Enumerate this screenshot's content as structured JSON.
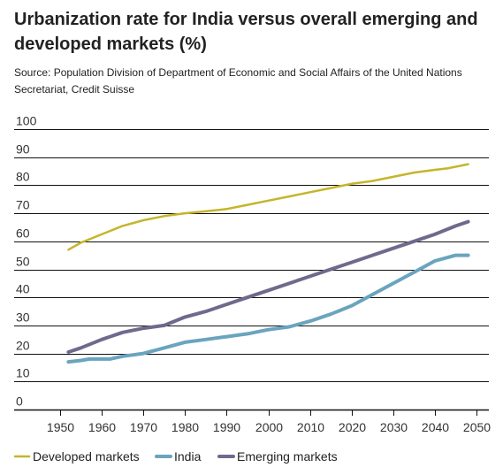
{
  "title": "Urbanization rate for India versus overall emerging and developed markets (%)",
  "source": "Source: Population Division of Department of Economic and Social Affairs of the United Nations Secretariat, Credit Suisse",
  "chart_data": {
    "type": "line",
    "title": "Urbanization rate for India versus overall emerging and developed markets (%)",
    "xlabel": "",
    "ylabel": "",
    "xlim": [
      1945,
      2052
    ],
    "ylim": [
      0,
      100
    ],
    "x_ticks": [
      1950,
      1960,
      1970,
      1980,
      1990,
      2000,
      2010,
      2020,
      2030,
      2040,
      2050
    ],
    "y_ticks": [
      0,
      10,
      20,
      30,
      40,
      50,
      60,
      70,
      80,
      90,
      100
    ],
    "grid": "horizontal",
    "legend": "bottom",
    "series": [
      {
        "name": "Developed markets",
        "color": "#C5B52B",
        "x": [
          1952,
          1955,
          1960,
          1965,
          1970,
          1975,
          1980,
          1985,
          1990,
          1995,
          2000,
          2005,
          2010,
          2015,
          2020,
          2025,
          2030,
          2035,
          2040,
          2043,
          2048
        ],
        "y": [
          57,
          59.5,
          62.5,
          65.5,
          67.5,
          69,
          70,
          70.7,
          71.5,
          73,
          74.5,
          76,
          77.5,
          79,
          80.5,
          81.5,
          83,
          84.5,
          85.5,
          86,
          87.5
        ]
      },
      {
        "name": "India",
        "color": "#6AA4BE",
        "x": [
          1952,
          1955,
          1957,
          1960,
          1962,
          1965,
          1970,
          1975,
          1980,
          1985,
          1990,
          1995,
          2000,
          2005,
          2010,
          2015,
          2020,
          2025,
          2030,
          2035,
          2040,
          2045,
          2048
        ],
        "y": [
          17,
          17.5,
          18,
          18,
          18,
          19,
          20,
          22,
          24,
          25,
          26,
          27,
          28.5,
          29.5,
          31.5,
          34,
          37,
          41,
          45,
          49,
          53,
          55,
          55
        ]
      },
      {
        "name": "Emerging markets",
        "color": "#6E6A8E",
        "x": [
          1952,
          1955,
          1960,
          1965,
          1970,
          1975,
          1980,
          1985,
          1990,
          1995,
          2000,
          2005,
          2010,
          2015,
          2020,
          2025,
          2030,
          2035,
          2040,
          2045,
          2048
        ],
        "y": [
          20.5,
          22,
          25,
          27.5,
          29,
          30,
          33,
          35,
          37.5,
          40,
          42.5,
          45,
          47.5,
          50,
          52.5,
          55,
          57.5,
          60,
          62.5,
          65.5,
          67
        ]
      }
    ]
  }
}
